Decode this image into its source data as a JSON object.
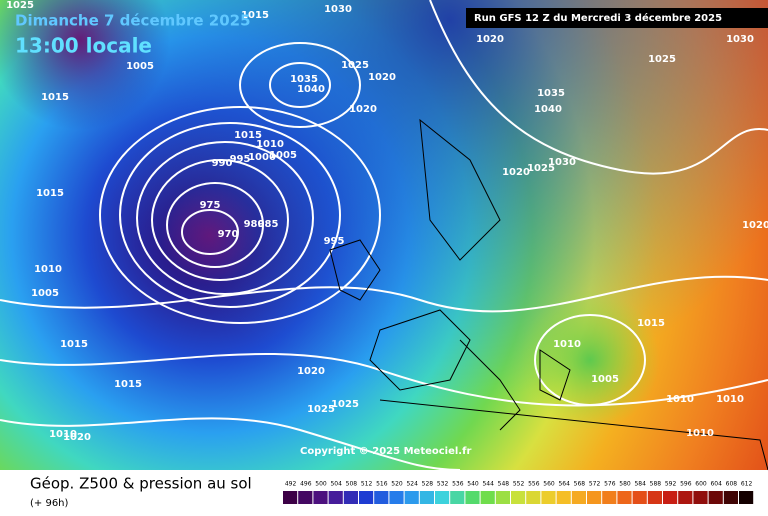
{
  "header": {
    "date": "Dimanche 7 décembre 2025",
    "time": "13:00 locale",
    "run": "Run GFS 12 Z du Mercredi 3 décembre 2025",
    "copyright": "Copyright © 2025 Meteociel.fr"
  },
  "footer": {
    "title": "Géop. Z500 & pression au sol",
    "lead": "(+ 96h)"
  },
  "legend": {
    "levels": [
      492,
      496,
      500,
      504,
      508,
      512,
      516,
      520,
      524,
      528,
      532,
      536,
      540,
      544,
      548,
      552,
      556,
      560,
      564,
      568,
      572,
      576,
      580,
      584,
      588,
      592,
      596,
      600,
      604,
      608,
      612
    ]
  },
  "isobar_labels": [
    1025,
    1015,
    1030,
    1020,
    1030,
    1005,
    1015,
    1025,
    1020,
    1035,
    1040,
    1025,
    1035,
    1040,
    1020,
    1015,
    1010,
    1005,
    1000,
    995,
    990,
    1015,
    975,
    980,
    985,
    970,
    995,
    1030,
    1025,
    1020,
    1010,
    1005,
    1020,
    1015,
    1010,
    1015,
    1005,
    1015,
    1020,
    1025,
    1025,
    1010,
    1010,
    1010,
    1010,
    1020
  ]
}
